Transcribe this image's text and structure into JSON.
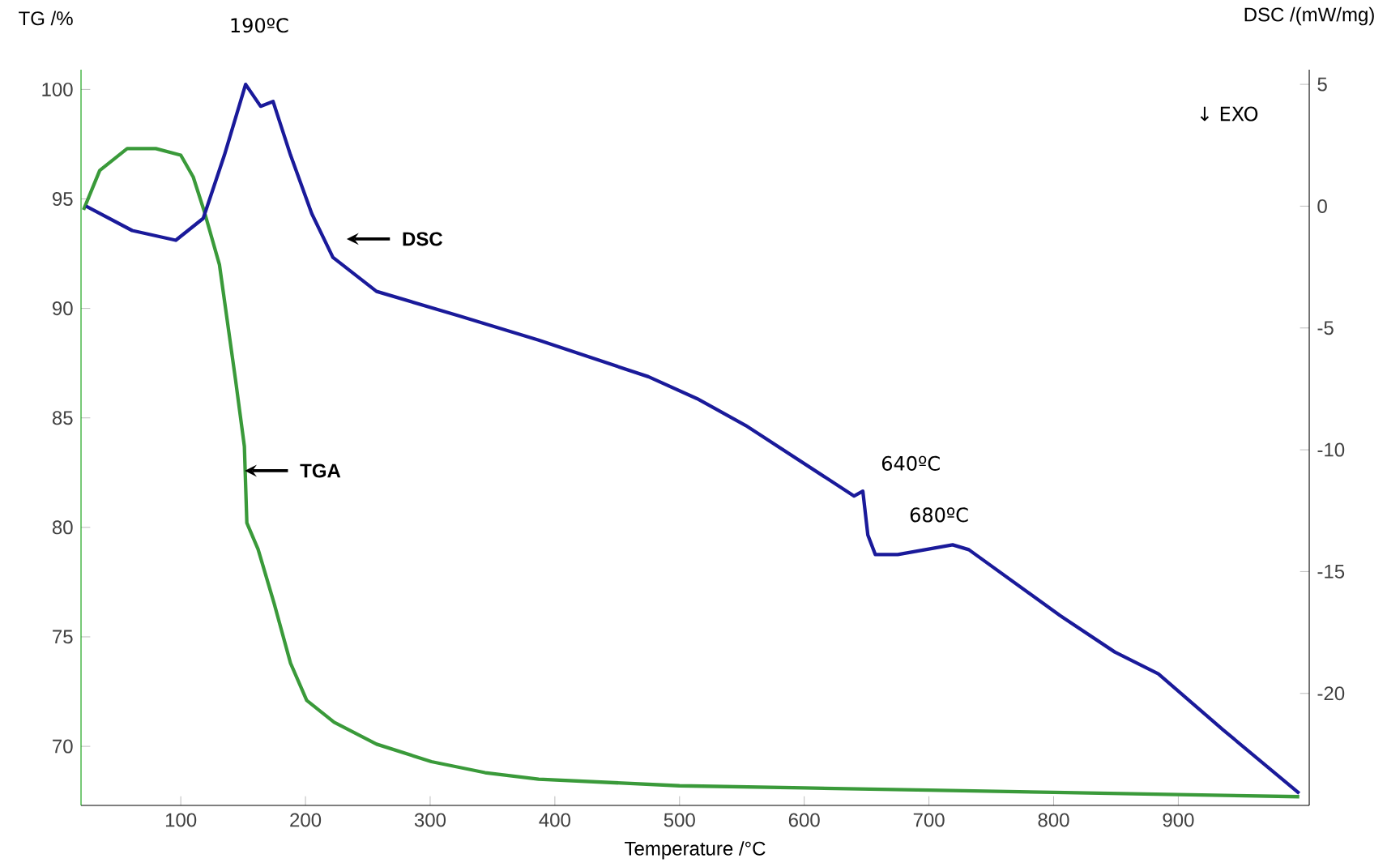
{
  "chart_data": {
    "type": "line",
    "xlabel": "Temperature /°C",
    "ylabel": "TG /%",
    "y2label": "DSC /(mW/mg)",
    "xlim": [
      20,
      1005
    ],
    "xticks": [
      100,
      200,
      300,
      400,
      500,
      600,
      700,
      800,
      900
    ],
    "ylim": [
      67.3,
      100.9
    ],
    "yticks": [
      70,
      75,
      80,
      85,
      90,
      95,
      100
    ],
    "y2lim": [
      -24.6,
      5.6
    ],
    "y2ticks": [
      -20,
      -15,
      -10,
      -5,
      0,
      5
    ],
    "grid": false,
    "marker": "none",
    "line_style": "solid",
    "series": [
      {
        "name": "TGA",
        "color": "#3a9a3a",
        "x": [
          22,
          35,
          57,
          80,
          100,
          110,
          119,
          131,
          144,
          151,
          153,
          162,
          175,
          188,
          201,
          223,
          257,
          301,
          344,
          387,
          500,
          600,
          700,
          800,
          900,
          997
        ],
        "values": [
          94.5,
          96.3,
          97.3,
          97.3,
          97.0,
          96.0,
          94.4,
          92.0,
          86.7,
          83.7,
          80.2,
          79.0,
          76.5,
          73.8,
          72.1,
          71.1,
          70.1,
          69.3,
          68.8,
          68.5,
          68.2,
          68.1,
          68.0,
          67.9,
          67.8,
          67.7
        ]
      },
      {
        "name": "DSC",
        "color": "#1a1a9a",
        "axis": "y2",
        "x": [
          24,
          61,
          96,
          118,
          135,
          152,
          164,
          174,
          188,
          205,
          222,
          257,
          323,
          387,
          475,
          514,
          553,
          640,
          647,
          651,
          657,
          675,
          719,
          732,
          805,
          849,
          884,
          936,
          997
        ],
        "values": [
          0,
          -1.0,
          -1.4,
          -0.5,
          2.1,
          5.0,
          4.1,
          4.3,
          2.1,
          -0.3,
          -2.1,
          -3.5,
          -4.5,
          -5.5,
          -7.0,
          -7.9,
          -9.0,
          -11.9,
          -11.7,
          -13.5,
          -14.3,
          -14.3,
          -13.9,
          -14.1,
          -16.8,
          -18.3,
          -19.2,
          -21.5,
          -24.1
        ]
      }
    ],
    "annotations": [
      "190ºC",
      "640ºC",
      "680ºC",
      "↓ EXO"
    ]
  }
}
